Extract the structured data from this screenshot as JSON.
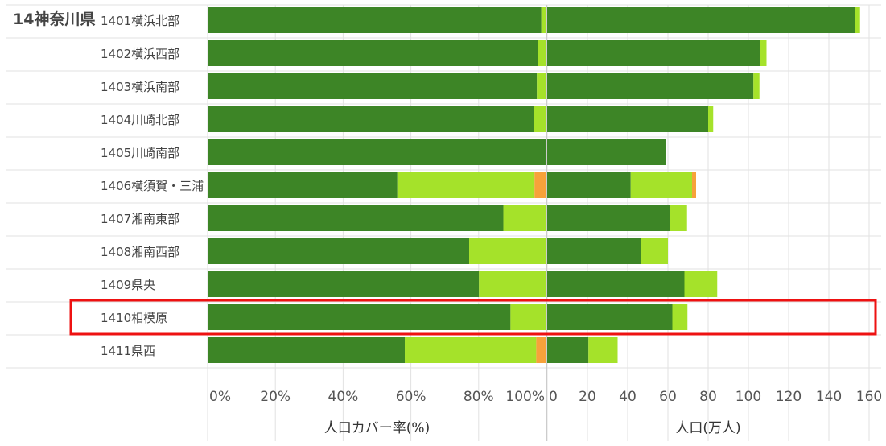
{
  "prefecture_label": "14神奈川県",
  "highlighted_category": "1410相模原",
  "colors": {
    "dark_green": "#3d8526",
    "light_green": "#a5e22a",
    "orange": "#f7a23a",
    "highlight": "#ee1111",
    "grid": "#e2e2e2",
    "axis_text": "#555555"
  },
  "chart_data": [
    {
      "type": "bar",
      "orientation": "horizontal",
      "stacked": true,
      "xlabel": "人口カバー率(%)",
      "xlim": [
        0,
        100
      ],
      "tick_labels": [
        "0%",
        "20%",
        "40%",
        "60%",
        "80%",
        "100%"
      ],
      "categories": [
        "1401横浜北部",
        "1402横浜西部",
        "1403横浜南部",
        "1404川崎北部",
        "1405川崎南部",
        "1406横須賀・三浦",
        "1407湘南東部",
        "1408湘南西部",
        "1409県央",
        "1410相模原",
        "1411県西"
      ],
      "series": [
        {
          "color": "#3d8526",
          "values": [
            98.5,
            97.5,
            97.2,
            96.2,
            100,
            56,
            87.3,
            77.2,
            80.1,
            89.4,
            58.2
          ]
        },
        {
          "color": "#a5e22a",
          "values": [
            1.5,
            2.5,
            2.8,
            3.8,
            0,
            40.5,
            12.7,
            22.8,
            19.9,
            10.6,
            38.8
          ]
        },
        {
          "color": "#f7a23a",
          "values": [
            0,
            0,
            0,
            0,
            0,
            3.5,
            0,
            0,
            0,
            0,
            3.0
          ]
        }
      ]
    },
    {
      "type": "bar",
      "orientation": "horizontal",
      "stacked": true,
      "xlabel": "人口(万人)",
      "xlim": [
        0,
        160
      ],
      "tick_labels": [
        "0",
        "20",
        "40",
        "60",
        "80",
        "100",
        "120",
        "140",
        "160"
      ],
      "categories": [
        "1401横浜北部",
        "1402横浜西部",
        "1403横浜南部",
        "1404川崎北部",
        "1405川崎南部",
        "1406横須賀・三浦",
        "1407湘南東部",
        "1408湘南西部",
        "1409県央",
        "1410相模原",
        "1411県西"
      ],
      "series": [
        {
          "color": "#3d8526",
          "values": [
            153,
            106,
            102.5,
            80,
            59,
            41.5,
            61,
            46.5,
            68.2,
            62.2,
            20.5
          ]
        },
        {
          "color": "#a5e22a",
          "values": [
            2.5,
            3,
            3,
            2.5,
            0,
            30.5,
            8.5,
            13.5,
            16.3,
            7.5,
            14.5
          ]
        },
        {
          "color": "#f7a23a",
          "values": [
            0,
            0,
            0,
            0,
            0,
            2,
            0,
            0,
            0,
            0,
            0
          ]
        }
      ]
    }
  ]
}
